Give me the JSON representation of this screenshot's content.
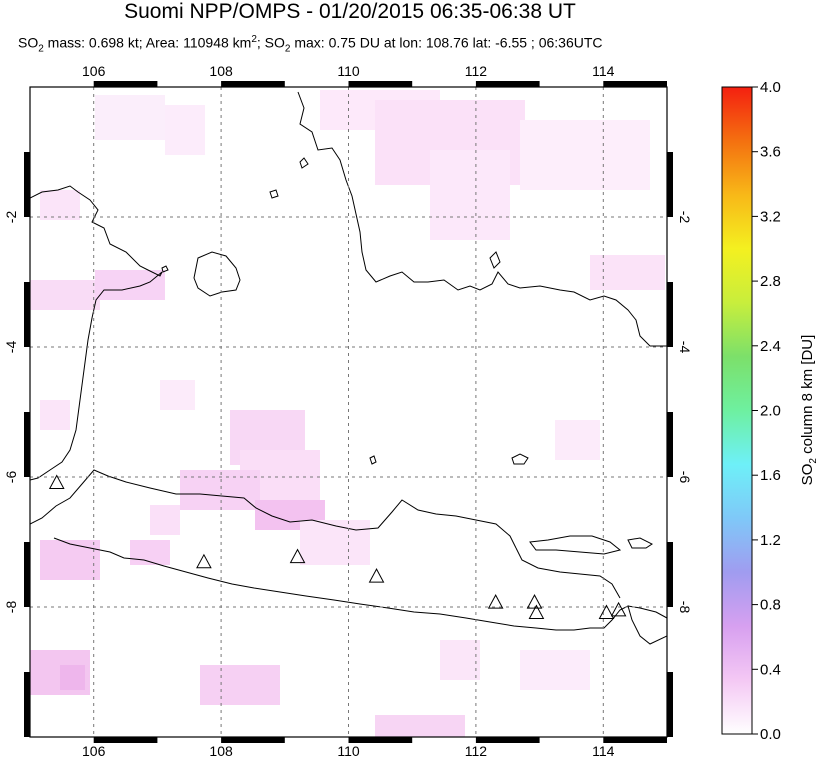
{
  "header": {
    "title": "Suomi NPP/OMPS - 01/20/2015 06:35-06:38 UT",
    "subtitle_prefix": "SO",
    "subtitle_sub": "2",
    "subtitle_mass": " mass: 0.698 kt; Area: 110948 km",
    "subtitle_sup": "2",
    "subtitle_rest": "; SO",
    "subtitle_sub2": "2",
    "subtitle_end": " max: 0.75 DU at lon: 108.76 lat: -6.55 ; 06:36UTC"
  },
  "map": {
    "lon_ticks": [
      "106",
      "108",
      "110",
      "112",
      "114"
    ],
    "lat_ticks_left": [
      "-2",
      "-4",
      "-6",
      "-8"
    ],
    "lat_ticks_right": [
      "-2",
      "-4",
      "-6",
      "-8"
    ],
    "lon_values": [
      106,
      108,
      110,
      112,
      114
    ],
    "lat_values": [
      -2,
      -4,
      -6,
      -8
    ],
    "extent": {
      "lon_min": 105,
      "lon_max": 115,
      "lat_min": -10,
      "lat_max": 0
    },
    "volcanoes": [
      {
        "lon": 105.42,
        "lat": -6.1
      },
      {
        "lon": 107.73,
        "lat": -7.32
      },
      {
        "lon": 109.2,
        "lat": -7.24
      },
      {
        "lon": 110.44,
        "lat": -7.54
      },
      {
        "lon": 112.31,
        "lat": -7.94
      },
      {
        "lon": 112.92,
        "lat": -7.94
      },
      {
        "lon": 112.95,
        "lat": -8.1
      },
      {
        "lon": 114.05,
        "lat": -8.1
      },
      {
        "lon": 114.24,
        "lat": -8.06
      }
    ],
    "grid": "dashed"
  },
  "colorbar": {
    "ticks": [
      "4.0",
      "3.6",
      "3.2",
      "2.8",
      "2.4",
      "2.0",
      "1.6",
      "1.2",
      "0.8",
      "0.4",
      "0.0"
    ],
    "label_main": "SO",
    "label_sub": "2",
    "label_rest": " column 8 km [DU]",
    "min": 0.0,
    "max": 4.0,
    "colors": [
      "#ffffff",
      "#f4c8f4",
      "#d7a0f0",
      "#a09cf0",
      "#7fc8f8",
      "#6ef0f8",
      "#6ef0a0",
      "#7ce06a",
      "#c8ee3c",
      "#f4f020",
      "#f8b818",
      "#f47010",
      "#f42010"
    ]
  }
}
